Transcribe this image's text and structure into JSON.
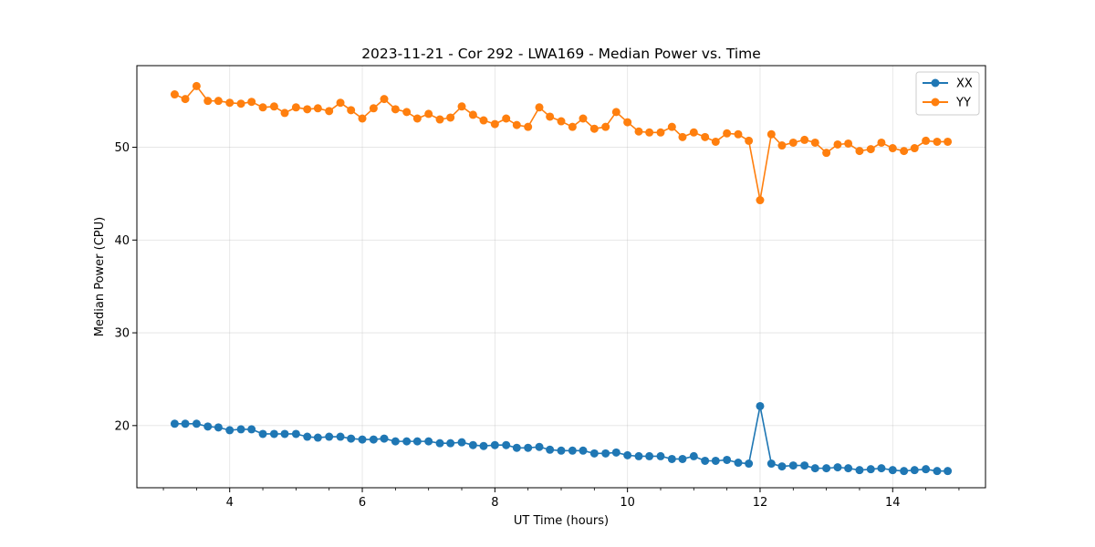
{
  "chart_data": {
    "type": "line",
    "title": "2023-11-21 - Cor 292 - LWA169 - Median Power vs. Time",
    "xlabel": "UT Time (hours)",
    "ylabel": "Median Power (CPU)",
    "xlim": [
      2.6,
      15.4
    ],
    "ylim": [
      13.3,
      58.8
    ],
    "xticks": [
      4,
      6,
      8,
      10,
      12,
      14
    ],
    "xtick_labels": [
      "4",
      "6",
      "8",
      "10",
      "12",
      "14"
    ],
    "yticks": [
      20,
      30,
      40,
      50
    ],
    "ytick_labels": [
      "20",
      "30",
      "40",
      "50"
    ],
    "grid": true,
    "legend_position": "top-right",
    "x": [
      3.17,
      3.33,
      3.5,
      3.67,
      3.83,
      4.0,
      4.17,
      4.33,
      4.5,
      4.67,
      4.83,
      5.0,
      5.17,
      5.33,
      5.5,
      5.67,
      5.83,
      6.0,
      6.17,
      6.33,
      6.5,
      6.67,
      6.83,
      7.0,
      7.17,
      7.33,
      7.5,
      7.67,
      7.83,
      8.0,
      8.17,
      8.33,
      8.5,
      8.67,
      8.83,
      9.0,
      9.17,
      9.33,
      9.5,
      9.67,
      9.83,
      10.0,
      10.17,
      10.33,
      10.5,
      10.67,
      10.83,
      11.0,
      11.17,
      11.33,
      11.5,
      11.67,
      11.83,
      12.0,
      12.17,
      12.33,
      12.5,
      12.67,
      12.83,
      13.0,
      13.17,
      13.33,
      13.5,
      13.67,
      13.83,
      14.0,
      14.17,
      14.33,
      14.5,
      14.67,
      14.83
    ],
    "series": [
      {
        "name": "XX",
        "color": "#1f77b4",
        "values": [
          20.2,
          20.2,
          20.2,
          19.9,
          19.8,
          19.5,
          19.6,
          19.6,
          19.1,
          19.1,
          19.1,
          19.1,
          18.8,
          18.7,
          18.8,
          18.8,
          18.6,
          18.5,
          18.5,
          18.6,
          18.3,
          18.3,
          18.3,
          18.3,
          18.1,
          18.1,
          18.2,
          17.9,
          17.8,
          17.9,
          17.9,
          17.6,
          17.6,
          17.7,
          17.4,
          17.3,
          17.3,
          17.3,
          17.0,
          17.0,
          17.1,
          16.8,
          16.7,
          16.7,
          16.7,
          16.4,
          16.4,
          16.7,
          16.2,
          16.2,
          16.3,
          16.0,
          15.9,
          22.1,
          15.9,
          15.6,
          15.7,
          15.7,
          15.4,
          15.4,
          15.5,
          15.4,
          15.2,
          15.3,
          15.4,
          15.2,
          15.1,
          15.2,
          15.3,
          15.1,
          15.1
        ]
      },
      {
        "name": "YY",
        "color": "#ff7f0e",
        "values": [
          55.7,
          55.2,
          56.6,
          55.0,
          55.0,
          54.8,
          54.7,
          54.9,
          54.3,
          54.4,
          53.7,
          54.3,
          54.1,
          54.2,
          53.9,
          54.8,
          54.0,
          53.1,
          54.2,
          55.2,
          54.1,
          53.8,
          53.1,
          53.6,
          53.0,
          53.2,
          54.4,
          53.5,
          52.9,
          52.5,
          53.1,
          52.4,
          52.2,
          54.3,
          53.3,
          52.8,
          52.2,
          53.1,
          52.0,
          52.2,
          53.8,
          52.7,
          51.7,
          51.6,
          51.6,
          52.2,
          51.1,
          51.6,
          51.1,
          50.6,
          51.5,
          51.4,
          50.7,
          44.3,
          51.4,
          50.2,
          50.5,
          50.8,
          50.5,
          49.4,
          50.3,
          50.4,
          49.6,
          49.8,
          50.5,
          49.9,
          49.6,
          49.9,
          50.7,
          50.6,
          50.6
        ]
      }
    ]
  }
}
